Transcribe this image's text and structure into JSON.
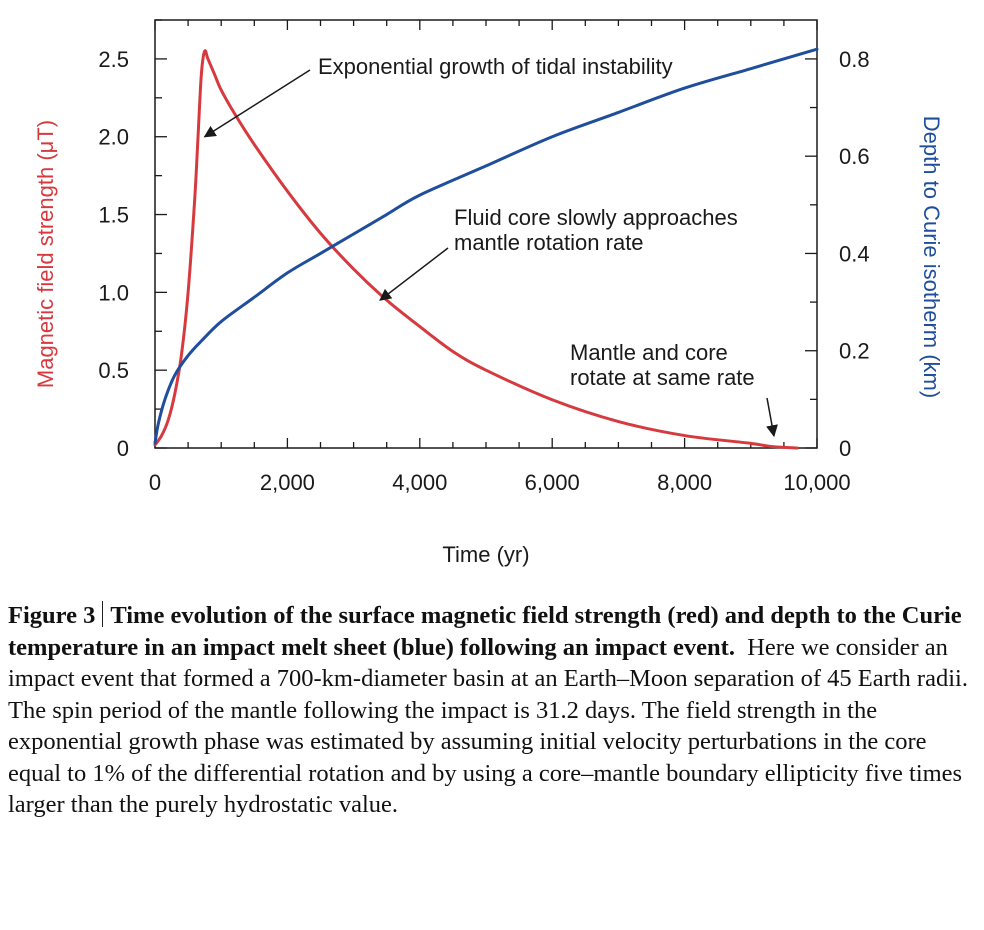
{
  "chart_data": {
    "type": "line",
    "xlabel": "Time (yr)",
    "ylabel_left": "Magnetic field strength (μT)",
    "ylabel_right": "Depth to Curie isotherm (km)",
    "xlim": [
      0,
      10000
    ],
    "ylim_left": [
      0,
      2.75
    ],
    "ylim_right": [
      0,
      0.88
    ],
    "x_ticks": [
      0,
      2000,
      4000,
      6000,
      8000,
      10000
    ],
    "x_tick_labels": [
      "0",
      "2,000",
      "4,000",
      "6,000",
      "8,000",
      "10,000"
    ],
    "y_left_ticks": [
      0,
      0.5,
      1.0,
      1.5,
      2.0,
      2.5
    ],
    "y_left_tick_labels": [
      "0",
      "0.5",
      "1.0",
      "1.5",
      "2.0",
      "2.5"
    ],
    "y_right_ticks": [
      0,
      0.2,
      0.4,
      0.6,
      0.8
    ],
    "y_right_tick_labels": [
      "0",
      "0.2",
      "0.4",
      "0.6",
      "0.8"
    ],
    "colors": {
      "field": "#d63a3f",
      "curie": "#1f4e9c",
      "axis": "#1a1a1a"
    },
    "series": [
      {
        "axis": "left",
        "color": "#d63a3f",
        "x": [
          0,
          100,
          200,
          300,
          400,
          500,
          600,
          650,
          700,
          750,
          800,
          900,
          1000,
          1200,
          1500,
          2000,
          2500,
          3000,
          3500,
          4000,
          4500,
          5000,
          6000,
          7000,
          8000,
          9000,
          9300,
          9700
        ],
        "y": [
          0.02,
          0.08,
          0.18,
          0.35,
          0.6,
          1.0,
          1.6,
          2.0,
          2.4,
          2.55,
          2.5,
          2.4,
          2.3,
          2.15,
          1.95,
          1.65,
          1.38,
          1.15,
          0.95,
          0.78,
          0.62,
          0.5,
          0.31,
          0.17,
          0.08,
          0.03,
          0.01,
          0.0
        ]
      },
      {
        "axis": "right",
        "color": "#1f4e9c",
        "x": [
          0,
          50,
          150,
          300,
          500,
          700,
          1000,
          1500,
          2000,
          2500,
          3000,
          3500,
          4000,
          5000,
          6000,
          7000,
          8000,
          9000,
          10000
        ],
        "y": [
          0.01,
          0.05,
          0.1,
          0.15,
          0.19,
          0.22,
          0.26,
          0.31,
          0.36,
          0.4,
          0.44,
          0.48,
          0.52,
          0.58,
          0.64,
          0.69,
          0.74,
          0.78,
          0.82
        ]
      }
    ],
    "annotations": [
      {
        "lines": [
          "Exponential growth of tidal instability"
        ],
        "arrow_to": [
          750,
          2.0
        ]
      },
      {
        "lines": [
          "Fluid core slowly approaches",
          "mantle rotation rate"
        ],
        "arrow_to": [
          3400,
          0.95
        ]
      },
      {
        "lines": [
          "Mantle and core",
          "rotate at same rate"
        ],
        "arrow_to": [
          9350,
          0.05
        ]
      }
    ]
  },
  "caption": {
    "label": "Figure 3",
    "bold_title": "Time evolution of the surface magnetic field strength (red) and depth to the Curie temperature in an impact melt sheet (blue) following an impact event.",
    "body": "Here we consider an impact event that formed a 700-km-diameter basin at an Earth–Moon separation of 45 Earth radii. The spin period of the mantle following the impact is 31.2 days. The field strength in the exponential growth phase was estimated by assuming initial velocity perturbations in the core equal to 1% of the differential rotation and by using a core–mantle boundary ellipticity five times larger than the purely hydrostatic value."
  }
}
